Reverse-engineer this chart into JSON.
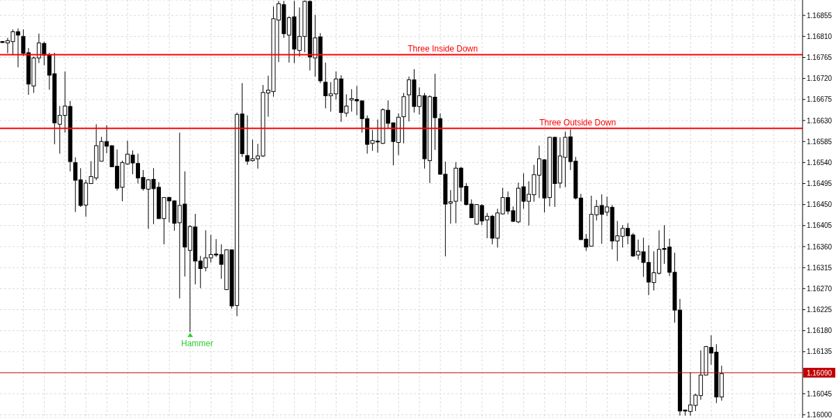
{
  "chart_data": {
    "type": "candlestick",
    "categories": [
      null,
      null,
      null,
      null,
      null,
      null,
      null,
      null,
      null,
      null,
      null,
      null,
      null,
      null,
      null,
      null,
      null,
      null,
      null,
      null,
      null,
      null,
      null,
      null,
      null,
      null,
      null,
      null,
      null,
      null,
      null,
      null,
      null,
      null,
      null,
      null,
      null,
      null,
      null,
      null,
      null,
      null,
      null,
      null,
      null,
      null,
      null,
      null,
      null,
      null,
      null,
      null,
      null,
      null,
      null,
      null,
      null,
      null,
      null,
      null,
      null,
      null,
      null,
      null,
      null,
      null,
      null,
      null,
      null,
      null,
      null,
      null,
      null,
      null,
      null,
      null,
      null,
      null,
      null,
      null,
      null,
      null,
      null,
      null,
      null,
      null,
      null,
      null,
      null,
      null,
      null,
      null,
      null,
      null,
      null,
      null,
      null,
      null,
      null,
      null,
      null,
      null,
      null,
      null,
      null,
      null,
      null,
      null,
      null,
      null,
      null,
      null,
      null,
      null,
      null,
      null,
      null,
      null,
      null,
      null,
      null,
      null,
      null,
      null,
      null,
      null,
      null,
      null,
      null,
      null,
      null,
      null,
      null,
      null,
      null,
      null,
      null,
      null,
      null,
      null,
      null,
      null,
      null,
      null,
      null,
      null,
      null,
      null,
      null,
      null,
      null,
      null,
      null,
      null
    ],
    "ohlc": [
      [
        1.16799,
        1.168,
        1.16796,
        1.16797
      ],
      [
        1.16796,
        1.16807,
        1.16774,
        1.16801
      ],
      [
        1.16799,
        1.16825,
        1.1677,
        1.1682
      ],
      [
        1.1682,
        1.16827,
        1.16744,
        1.16813
      ],
      [
        1.1681,
        1.16825,
        1.16768,
        1.16774
      ],
      [
        1.16775,
        1.16785,
        1.16685,
        1.16708
      ],
      [
        1.16704,
        1.16767,
        1.16689,
        1.16764
      ],
      [
        1.16764,
        1.16816,
        1.16753,
        1.16796
      ],
      [
        1.16795,
        1.16799,
        1.16748,
        1.1677
      ],
      [
        1.16771,
        1.16775,
        1.16696,
        1.16727
      ],
      [
        1.1673,
        1.16775,
        1.16579,
        1.16625
      ],
      [
        1.16622,
        1.16661,
        1.16559,
        1.16641
      ],
      [
        1.16641,
        1.16735,
        1.16604,
        1.16661
      ],
      [
        1.1666,
        1.16672,
        1.16521,
        1.16542
      ],
      [
        1.1654,
        1.16551,
        1.16434,
        1.16502
      ],
      [
        1.16503,
        1.16528,
        1.16445,
        1.16448
      ],
      [
        1.16449,
        1.16503,
        1.16424,
        1.16496
      ],
      [
        1.16495,
        1.16543,
        1.16494,
        1.1651
      ],
      [
        1.16507,
        1.16622,
        1.16502,
        1.16576
      ],
      [
        1.16543,
        1.16595,
        1.16543,
        1.16585
      ],
      [
        1.16585,
        1.1662,
        1.1656,
        1.16575
      ],
      [
        1.16576,
        1.16577,
        1.16531,
        1.16531
      ],
      [
        1.16532,
        1.16568,
        1.1648,
        1.16485
      ],
      [
        1.16487,
        1.16544,
        1.16457,
        1.1654
      ],
      [
        1.16537,
        1.16587,
        1.16535,
        1.16558
      ],
      [
        1.16556,
        1.16566,
        1.16515,
        1.16539
      ],
      [
        1.16538,
        1.16559,
        1.16495,
        1.16507
      ],
      [
        1.16508,
        1.16524,
        1.1648,
        1.16484
      ],
      [
        1.16483,
        1.16505,
        1.16398,
        1.16503
      ],
      [
        1.16504,
        1.16528,
        1.16408,
        1.16484
      ],
      [
        1.16487,
        1.16498,
        1.16419,
        1.1642
      ],
      [
        1.1642,
        1.16466,
        1.16365,
        1.16465
      ],
      [
        1.16465,
        1.16467,
        1.16412,
        1.16458
      ],
      [
        1.16458,
        1.16459,
        1.16394,
        1.1641
      ],
      [
        1.16411,
        1.16604,
        1.16249,
        1.16448
      ],
      [
        1.16451,
        1.16521,
        1.16296,
        1.16359
      ],
      [
        1.16352,
        1.16406,
        1.16177,
        1.16403
      ],
      [
        1.16402,
        1.1643,
        1.16279,
        1.16329
      ],
      [
        1.16329,
        1.1634,
        1.16271,
        1.16313
      ],
      [
        1.16315,
        1.16395,
        1.16307,
        1.16336
      ],
      [
        1.16336,
        1.16385,
        1.16326,
        1.16343
      ],
      [
        1.16344,
        1.16376,
        1.16338,
        1.16342
      ],
      [
        1.16343,
        1.16365,
        1.16291,
        1.16322
      ],
      [
        1.16268,
        1.16354,
        1.16267,
        1.16353
      ],
      [
        1.16353,
        1.16354,
        1.16227,
        1.16233
      ],
      [
        1.16234,
        1.16647,
        1.16211,
        1.16643
      ],
      [
        1.16644,
        1.1671,
        1.16552,
        1.16559
      ],
      [
        1.16555,
        1.16641,
        1.16535,
        1.16543
      ],
      [
        1.16544,
        1.16589,
        1.16542,
        1.16548
      ],
      [
        1.16548,
        1.1658,
        1.16527,
        1.16554
      ],
      [
        1.16554,
        1.16706,
        1.16552,
        1.1669
      ],
      [
        1.16689,
        1.16726,
        1.16638,
        1.16695
      ],
      [
        1.16692,
        1.16874,
        1.16681,
        1.16848
      ],
      [
        1.16845,
        1.16886,
        1.16755,
        1.1688
      ],
      [
        1.16878,
        1.16886,
        1.16807,
        1.16816
      ],
      [
        1.16813,
        1.16853,
        1.16754,
        1.1685
      ],
      [
        1.16852,
        1.16886,
        1.16753,
        1.16783
      ],
      [
        1.1678,
        1.16872,
        1.16767,
        1.1681
      ],
      [
        1.1681,
        1.16887,
        1.16776,
        1.16885
      ],
      [
        1.16885,
        1.16887,
        1.16737,
        1.16766
      ],
      [
        1.16764,
        1.16856,
        1.16724,
        1.16807
      ],
      [
        1.16809,
        1.16817,
        1.1671,
        1.16715
      ],
      [
        1.16712,
        1.16754,
        1.16656,
        1.16683
      ],
      [
        1.16683,
        1.16712,
        1.16649,
        1.16687
      ],
      [
        1.16687,
        1.16735,
        1.16675,
        1.16719
      ],
      [
        1.16719,
        1.16727,
        1.16627,
        1.16647
      ],
      [
        1.16646,
        1.16686,
        1.16638,
        1.16661
      ],
      [
        1.16674,
        1.16697,
        1.16649,
        1.16677
      ],
      [
        1.16675,
        1.16704,
        1.16641,
        1.16672
      ],
      [
        1.16672,
        1.16673,
        1.16604,
        1.16634
      ],
      [
        1.16634,
        1.16641,
        1.16559,
        1.16579
      ],
      [
        1.16581,
        1.1661,
        1.16565,
        1.16587
      ],
      [
        1.16586,
        1.16632,
        1.16561,
        1.16584
      ],
      [
        1.16581,
        1.16656,
        1.1658,
        1.16653
      ],
      [
        1.16652,
        1.16673,
        1.16614,
        1.16624
      ],
      [
        1.16625,
        1.16626,
        1.16534,
        1.16585
      ],
      [
        1.16583,
        1.16645,
        1.16556,
        1.16637
      ],
      [
        1.16638,
        1.16689,
        1.16581,
        1.16681
      ],
      [
        1.16685,
        1.16724,
        1.16628,
        1.16717
      ],
      [
        1.16717,
        1.1674,
        1.16647,
        1.1666
      ],
      [
        1.1666,
        1.16701,
        1.16643,
        1.16683
      ],
      [
        1.16683,
        1.16689,
        1.16527,
        1.16548
      ],
      [
        1.16544,
        1.16684,
        1.16496,
        1.16681
      ],
      [
        1.1668,
        1.1673,
        1.16567,
        1.16636
      ],
      [
        1.16634,
        1.16645,
        1.16514,
        1.16515
      ],
      [
        1.16515,
        1.16542,
        1.16339,
        1.16451
      ],
      [
        1.16453,
        1.16481,
        1.16409,
        1.16456
      ],
      [
        1.16457,
        1.16541,
        1.1641,
        1.16528
      ],
      [
        1.16528,
        1.16531,
        1.16457,
        1.16487
      ],
      [
        1.16489,
        1.16496,
        1.16448,
        1.1645
      ],
      [
        1.16451,
        1.16461,
        1.16421,
        1.16422
      ],
      [
        1.16408,
        1.16451,
        1.16407,
        1.1645
      ],
      [
        1.16448,
        1.16451,
        1.16406,
        1.16415
      ],
      [
        1.16417,
        1.16432,
        1.16378,
        1.16425
      ],
      [
        1.16425,
        1.16428,
        1.16365,
        1.16378
      ],
      [
        1.16378,
        1.16441,
        1.16358,
        1.16432
      ],
      [
        1.1643,
        1.16486,
        1.16429,
        1.16465
      ],
      [
        1.16465,
        1.16478,
        1.16429,
        1.16436
      ],
      [
        1.16437,
        1.16446,
        1.16413,
        1.16414
      ],
      [
        1.16413,
        1.16497,
        1.1641,
        1.16485
      ],
      [
        1.16488,
        1.16517,
        1.16441,
        1.16457
      ],
      [
        1.16457,
        1.165,
        1.16405,
        1.16472
      ],
      [
        1.16471,
        1.16535,
        1.16456,
        1.16514
      ],
      [
        1.16513,
        1.16576,
        1.16464,
        1.16548
      ],
      [
        1.16546,
        1.16547,
        1.16433,
        1.16464
      ],
      [
        1.16465,
        1.16595,
        1.16446,
        1.16594
      ],
      [
        1.16594,
        1.16595,
        1.16445,
        1.16495
      ],
      [
        1.16496,
        1.16594,
        1.16485,
        1.16554
      ],
      [
        1.16551,
        1.16606,
        1.16487,
        1.16594
      ],
      [
        1.16595,
        1.16611,
        1.16524,
        1.16542
      ],
      [
        1.16543,
        1.16552,
        1.16461,
        1.16464
      ],
      [
        1.16464,
        1.16473,
        1.16374,
        1.16375
      ],
      [
        1.16376,
        1.16387,
        1.16351,
        1.16359
      ],
      [
        1.16361,
        1.16469,
        1.1636,
        1.16429
      ],
      [
        1.16428,
        1.1646,
        1.16416,
        1.16446
      ],
      [
        1.16448,
        1.16472,
        1.16366,
        1.16429
      ],
      [
        1.16434,
        1.16467,
        1.16425,
        1.16445
      ],
      [
        1.16444,
        1.16449,
        1.16354,
        1.16372
      ],
      [
        1.16372,
        1.16415,
        1.16329,
        1.16383
      ],
      [
        1.16382,
        1.16406,
        1.16358,
        1.16399
      ],
      [
        1.16399,
        1.1641,
        1.16365,
        1.16383
      ],
      [
        1.16385,
        1.16389,
        1.16338,
        1.1634
      ],
      [
        1.16342,
        1.16375,
        1.16332,
        1.1635
      ],
      [
        1.16349,
        1.16379,
        1.16295,
        1.16326
      ],
      [
        1.16326,
        1.16363,
        1.16256,
        1.16284
      ],
      [
        1.16283,
        1.1635,
        1.16266,
        1.16304
      ],
      [
        1.16303,
        1.16395,
        1.163,
        1.16354
      ],
      [
        1.16356,
        1.16406,
        1.16323,
        1.16354
      ],
      [
        1.16359,
        1.16377,
        1.16297,
        1.16305
      ],
      [
        1.16305,
        1.16347,
        1.16197,
        1.16224
      ],
      [
        1.16224,
        1.16248,
        1.15998,
        1.16008
      ],
      [
        1.1601,
        1.16011,
        1.15998,
        1.16008
      ],
      [
        1.16007,
        1.16091,
        1.15998,
        1.16021
      ],
      [
        1.1602,
        1.16045,
        1.16008,
        1.16042
      ],
      [
        1.16041,
        1.16138,
        1.16032,
        1.16085
      ],
      [
        1.16085,
        1.16147,
        1.16084,
        1.16146
      ],
      [
        1.16144,
        1.1617,
        1.16107,
        1.16132
      ],
      [
        1.16134,
        1.16151,
        1.16025,
        1.16038
      ],
      [
        1.16038,
        1.16105,
        1.1603,
        1.16088
      ],
      null,
      null,
      null,
      null,
      null,
      null,
      null,
      null,
      null,
      null,
      null,
      null,
      null,
      null,
      null
    ],
    "ylim": [
      1.15993,
      1.16888
    ],
    "yticks": [
      {
        "value": 1.16,
        "label": "1.16000"
      },
      {
        "value": 1.16045,
        "label": "1.16045"
      },
      {
        "value": 1.16135,
        "label": "1.16135"
      },
      {
        "value": 1.1618,
        "label": "1.16180"
      },
      {
        "value": 1.16225,
        "label": "1.16225"
      },
      {
        "value": 1.1627,
        "label": "1.16270"
      },
      {
        "value": 1.16315,
        "label": "1.16315"
      },
      {
        "value": 1.1636,
        "label": "1.16360"
      },
      {
        "value": 1.16405,
        "label": "1.16405"
      },
      {
        "value": 1.1645,
        "label": "1.16450"
      },
      {
        "value": 1.16495,
        "label": "1.16495"
      },
      {
        "value": 1.1654,
        "label": "1.16540"
      },
      {
        "value": 1.16585,
        "label": "1.16585"
      },
      {
        "value": 1.1663,
        "label": "1.16630"
      },
      {
        "value": 1.16675,
        "label": "1.16675"
      },
      {
        "value": 1.1672,
        "label": "1.16720"
      },
      {
        "value": 1.16765,
        "label": "1.16765"
      },
      {
        "value": 1.1681,
        "label": "1.16810"
      },
      {
        "value": 1.16855,
        "label": "1.16855"
      }
    ],
    "grid": true,
    "ref_lines": [
      {
        "axis": "y",
        "value": 1.16771,
        "label": "Three Inside Down",
        "color": "#ff0000"
      },
      {
        "axis": "y",
        "value": 1.16613,
        "label": "Three Outside Down",
        "color": "#ff0000"
      },
      {
        "axis": "y",
        "value": 1.1609,
        "label": "1.16090",
        "color": "#c00000"
      }
    ],
    "annotations": [
      "Hammer"
    ]
  }
}
